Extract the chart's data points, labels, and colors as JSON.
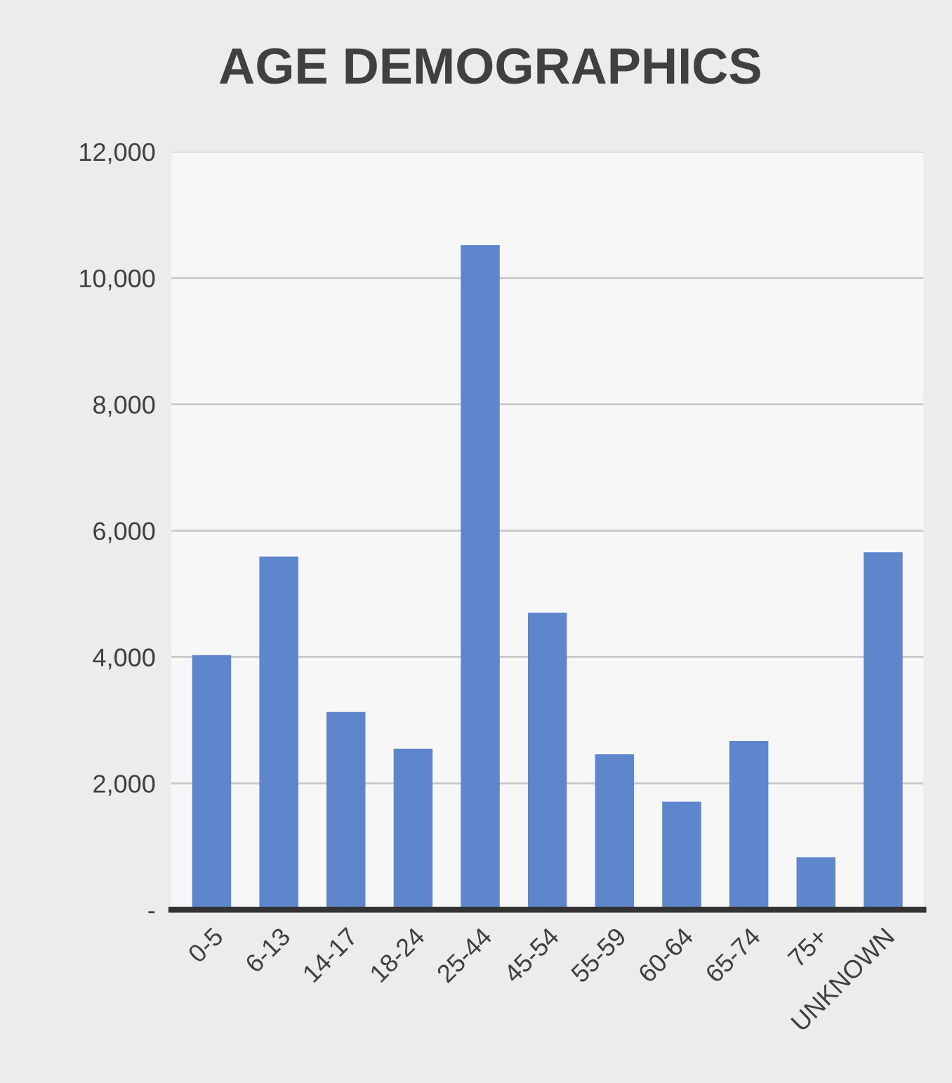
{
  "chart_data": {
    "type": "bar",
    "title": "AGE DEMOGRAPHICS",
    "categories": [
      "0-5",
      "6-13",
      "14-17",
      "18-24",
      "25-44",
      "45-54",
      "55-59",
      "60-64",
      "65-74",
      "75+",
      "UNKNOWN"
    ],
    "values": [
      4030,
      5590,
      3130,
      2550,
      10520,
      4700,
      2460,
      1710,
      2670,
      830,
      5660
    ],
    "color": "#5e86cc",
    "ylim": [
      0,
      12000
    ],
    "yticks": [
      {
        "value": 0,
        "label": "-"
      },
      {
        "value": 2000,
        "label": "2,000"
      },
      {
        "value": 4000,
        "label": "4,000"
      },
      {
        "value": 6000,
        "label": "6,000"
      },
      {
        "value": 8000,
        "label": "8,000"
      },
      {
        "value": 10000,
        "label": "10,000"
      },
      {
        "value": 12000,
        "label": "12,000"
      }
    ],
    "grid": "y"
  }
}
